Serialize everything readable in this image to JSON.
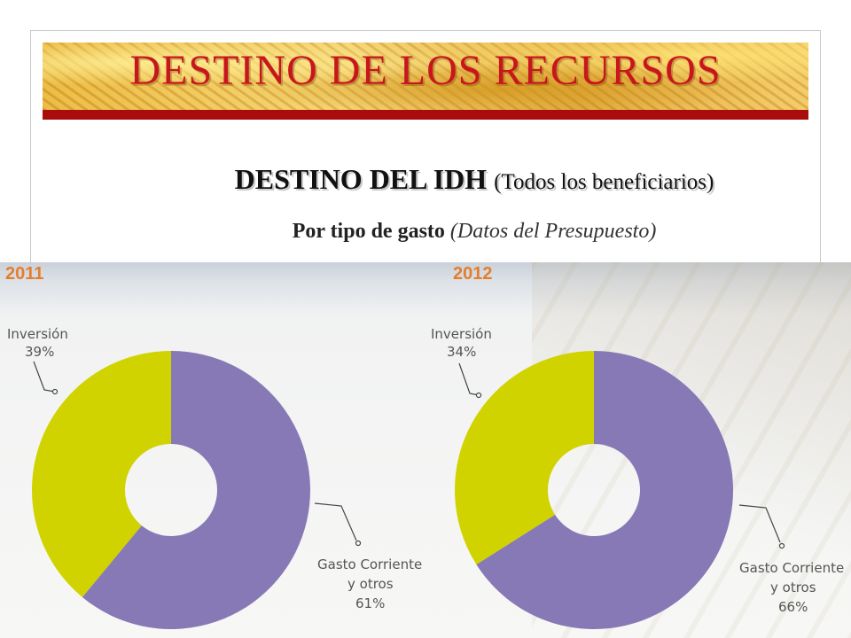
{
  "header": {
    "title": "DESTINO DE LOS RECURSOS",
    "subtitle_bold": "DESTINO  DEL IDH",
    "subtitle_paren": "(Todos los beneficiarios)",
    "subline_bold": "Por tipo de gasto",
    "subline_italic": "(Datos del Presupuesto)"
  },
  "colors": {
    "title": "#c8161d",
    "rule": "#a80c0c",
    "year": "#e47e2d",
    "inversion": "#d1d300",
    "gasto": "#8679b6"
  },
  "chart_data": [
    {
      "type": "pie",
      "title": "2011",
      "slices": [
        {
          "label": "Inversión",
          "value": 39,
          "value_label": "39%"
        },
        {
          "label": "Gasto Corriente y otros",
          "value": 61,
          "value_label": "61%"
        }
      ]
    },
    {
      "type": "pie",
      "title": "2012",
      "slices": [
        {
          "label": "Inversión",
          "value": 34,
          "value_label": "34%"
        },
        {
          "label": "Gasto Corriente y otros",
          "value": 66,
          "value_label": "66%"
        }
      ]
    }
  ],
  "labels": {
    "c2011": {
      "year": "2011",
      "inv_name": "Inversión",
      "inv_pct": "39%",
      "gasto_line1": "Gasto Corriente",
      "gasto_line2": "y otros",
      "gasto_pct": "61%"
    },
    "c2012": {
      "year": "2012",
      "inv_name": "Inversión",
      "inv_pct": "34%",
      "gasto_line1": "Gasto Corriente",
      "gasto_line2": "y otros",
      "gasto_pct": "66%"
    }
  }
}
